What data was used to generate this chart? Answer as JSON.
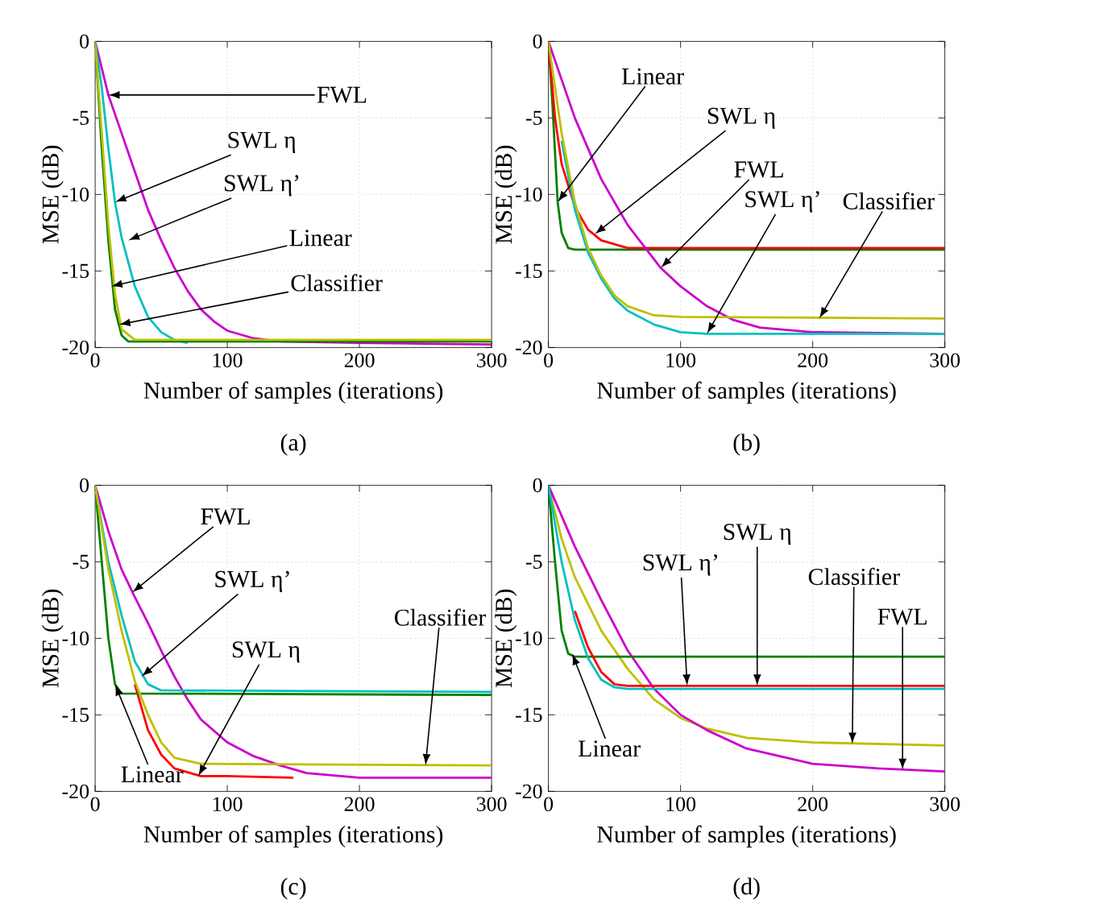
{
  "chart_data": [
    {
      "type": "line",
      "xlabel": "Number of samples (iterations)",
      "ylabel": "MSE (dB)",
      "xlim": [
        0,
        300
      ],
      "ylim": [
        -20,
        0
      ],
      "xticks": [
        0,
        100,
        200,
        300
      ],
      "yticks": [
        -20,
        -15,
        -10,
        -5,
        0
      ],
      "grid": true,
      "series": [
        {
          "color": "#cc00cc",
          "x": [
            0,
            10,
            20,
            30,
            40,
            50,
            60,
            70,
            80,
            90,
            100,
            120,
            140,
            200,
            300
          ],
          "values": [
            0,
            -3.5,
            -6,
            -8.5,
            -11,
            -13,
            -14.8,
            -16.3,
            -17.5,
            -18.3,
            -18.9,
            -19.4,
            -19.6,
            -19.7,
            -19.8
          ]
        },
        {
          "color": "#00c0c0",
          "x": [
            0,
            5,
            10,
            15,
            20,
            30,
            40,
            50,
            60,
            70
          ],
          "values": [
            0,
            -3,
            -7,
            -10.5,
            -12.8,
            -16,
            -18,
            -19,
            -19.5,
            -19.7
          ]
        },
        {
          "color": "#008000",
          "x": [
            0,
            5,
            10,
            15,
            20,
            25,
            300
          ],
          "values": [
            0,
            -7,
            -13,
            -17.5,
            -19.2,
            -19.6,
            -19.6
          ]
        },
        {
          "color": "#bfbf00",
          "x": [
            0,
            5,
            10,
            15,
            20,
            30,
            300
          ],
          "values": [
            0,
            -6,
            -12,
            -16.5,
            -18.8,
            -19.5,
            -19.5
          ]
        }
      ],
      "annotations": [
        "(a)",
        {
          "text": "FWL",
          "x": 10,
          "y": -3.5
        },
        {
          "text": "SWL η",
          "x": 15,
          "y": -10.5
        },
        {
          "text": "SWL η’",
          "x": 25,
          "y": -13
        },
        {
          "text": "Linear",
          "x": 12,
          "y": -16
        },
        {
          "text": "Classifier",
          "x": 18,
          "y": -18.5
        }
      ]
    },
    {
      "type": "line",
      "xlabel": "Number of samples (iterations)",
      "ylabel": "MSE (dB)",
      "xlim": [
        0,
        300
      ],
      "ylim": [
        -20,
        0
      ],
      "xticks": [
        0,
        100,
        200,
        300
      ],
      "yticks": [
        -20,
        -15,
        -10,
        -5,
        0
      ],
      "grid": true,
      "series": [
        {
          "color": "#008000",
          "x": [
            0,
            3,
            7,
            10,
            15,
            20,
            300
          ],
          "values": [
            0,
            -4,
            -10.5,
            -12.5,
            -13.5,
            -13.6,
            -13.6
          ]
        },
        {
          "color": "#ff0000",
          "x": [
            0,
            5,
            10,
            20,
            30,
            40,
            60,
            300
          ],
          "values": [
            0,
            -5,
            -8,
            -10.8,
            -12.3,
            -13,
            -13.5,
            -13.5
          ]
        },
        {
          "color": "#cc00cc",
          "x": [
            0,
            20,
            40,
            60,
            85,
            100,
            120,
            140,
            160,
            200,
            300
          ],
          "values": [
            0,
            -5,
            -9,
            -12,
            -14.8,
            -16,
            -17.3,
            -18.2,
            -18.7,
            -19,
            -19.1
          ]
        },
        {
          "color": "#00c0c0",
          "x": [
            10,
            20,
            30,
            40,
            50,
            60,
            80,
            100,
            120,
            300
          ],
          "values": [
            -6.5,
            -11,
            -13.8,
            -15.5,
            -16.8,
            -17.6,
            -18.5,
            -19,
            -19.1,
            -19.1
          ]
        },
        {
          "color": "#bfbf00",
          "x": [
            0,
            10,
            20,
            30,
            40,
            50,
            60,
            80,
            100,
            300
          ],
          "values": [
            0,
            -6,
            -10.5,
            -13.5,
            -15.3,
            -16.6,
            -17.3,
            -17.9,
            -18,
            -18.1
          ]
        }
      ],
      "annotations": [
        "(b)",
        {
          "text": "Linear",
          "x": 7,
          "y": -10.5
        },
        {
          "text": "SWL η",
          "x": 35,
          "y": -12.6
        },
        {
          "text": "FWL",
          "x": 85,
          "y": -14.8
        },
        {
          "text": "SWL η’",
          "x": 120,
          "y": -19.1
        },
        {
          "text": "Classifier",
          "x": 205,
          "y": -18.1
        }
      ]
    },
    {
      "type": "line",
      "xlabel": "Number of samples (iterations)",
      "ylabel": "MSE (dB)",
      "xlim": [
        0,
        300
      ],
      "ylim": [
        -20,
        0
      ],
      "xticks": [
        0,
        100,
        200,
        300
      ],
      "yticks": [
        -20,
        -15,
        -10,
        -5,
        0
      ],
      "grid": true,
      "series": [
        {
          "color": "#ff0000",
          "x": [
            30,
            40,
            50,
            60,
            80,
            100,
            150
          ],
          "values": [
            -13,
            -16,
            -17.6,
            -18.5,
            -19,
            -19,
            -19.1
          ]
        },
        {
          "color": "#cc00cc",
          "x": [
            0,
            10,
            20,
            30,
            40,
            50,
            60,
            70,
            80,
            100,
            120,
            140,
            160,
            200,
            300
          ],
          "values": [
            0,
            -3,
            -5.5,
            -7.3,
            -9,
            -10.8,
            -12.5,
            -14,
            -15.3,
            -16.8,
            -17.7,
            -18.3,
            -18.8,
            -19.1,
            -19.1
          ]
        },
        {
          "color": "#008000",
          "x": [
            0,
            5,
            10,
            15,
            20,
            300
          ],
          "values": [
            0,
            -5,
            -10,
            -13,
            -13.6,
            -13.7
          ]
        },
        {
          "color": "#00c0c0",
          "x": [
            0,
            10,
            20,
            30,
            40,
            50,
            300
          ],
          "values": [
            0,
            -5,
            -8.5,
            -11.5,
            -13,
            -13.4,
            -13.5
          ]
        },
        {
          "color": "#bfbf00",
          "x": [
            0,
            10,
            20,
            30,
            40,
            50,
            60,
            80,
            300
          ],
          "values": [
            0,
            -5.5,
            -9.5,
            -12.8,
            -15,
            -16.8,
            -17.8,
            -18.2,
            -18.3
          ]
        }
      ],
      "annotations": [
        "(c)",
        {
          "text": "FWL",
          "x": 28,
          "y": -7
        },
        {
          "text": "SWL η’",
          "x": 35,
          "y": -12.5
        },
        {
          "text": "SWL η",
          "x": 78,
          "y": -19
        },
        {
          "text": "Classifier",
          "x": 250,
          "y": -18.3
        },
        {
          "text": "Linear",
          "x": 15,
          "y": -13
        }
      ]
    },
    {
      "type": "line",
      "xlabel": "Number of samples (iterations)",
      "ylabel": "MSE (dB)",
      "xlim": [
        0,
        300
      ],
      "ylim": [
        -20,
        0
      ],
      "xticks": [
        0,
        100,
        200,
        300
      ],
      "yticks": [
        -20,
        -15,
        -10,
        -5,
        0
      ],
      "grid": true,
      "series": [
        {
          "color": "#bfbf00",
          "x": [
            0,
            10,
            20,
            40,
            60,
            80,
            100,
            120,
            150,
            200,
            300
          ],
          "values": [
            0,
            -3.5,
            -6,
            -9.5,
            -12,
            -14,
            -15.2,
            -15.9,
            -16.5,
            -16.8,
            -17
          ]
        },
        {
          "color": "#cc00cc",
          "x": [
            0,
            10,
            20,
            40,
            60,
            80,
            100,
            120,
            150,
            200,
            250,
            300
          ],
          "values": [
            0,
            -2,
            -4,
            -7.5,
            -10.8,
            -13.3,
            -15,
            -16,
            -17.2,
            -18.2,
            -18.5,
            -18.7
          ]
        },
        {
          "color": "#008000",
          "x": [
            0,
            5,
            10,
            15,
            20,
            300
          ],
          "values": [
            0,
            -5,
            -9.5,
            -11,
            -11.2,
            -11.2
          ]
        },
        {
          "color": "#ff0000",
          "x": [
            20,
            30,
            40,
            50,
            60,
            300
          ],
          "values": [
            -8.2,
            -10.6,
            -12.2,
            -13,
            -13.1,
            -13.1
          ]
        },
        {
          "color": "#00c0c0",
          "x": [
            0,
            10,
            20,
            30,
            40,
            50,
            60,
            300
          ],
          "values": [
            0,
            -5,
            -8.8,
            -11.3,
            -12.7,
            -13.2,
            -13.3,
            -13.3
          ]
        }
      ],
      "annotations": [
        "(d)",
        {
          "text": "SWL η’",
          "x": 105,
          "y": -13.1
        },
        {
          "text": "SWL η",
          "x": 158,
          "y": -13.1
        },
        {
          "text": "Classifier",
          "x": 230,
          "y": -16.9
        },
        {
          "text": "FWL",
          "x": 268,
          "y": -18.6
        },
        {
          "text": "Linear",
          "x": 18,
          "y": -11
        }
      ]
    }
  ]
}
